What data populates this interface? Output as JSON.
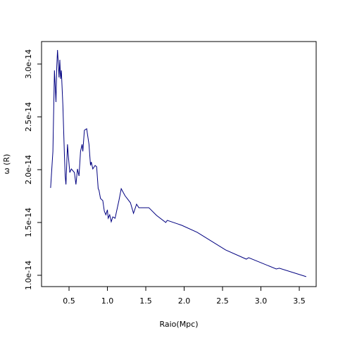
{
  "chart_data": {
    "type": "line",
    "xlabel": "Raio(Mpc)",
    "ylabel": "ω (R)",
    "x": [
      0.26,
      0.29,
      0.31,
      0.33,
      0.34,
      0.35,
      0.36,
      0.37,
      0.38,
      0.39,
      0.4,
      0.42,
      0.44,
      0.45,
      0.46,
      0.48,
      0.49,
      0.51,
      0.53,
      0.57,
      0.59,
      0.61,
      0.63,
      0.65,
      0.67,
      0.68,
      0.7,
      0.73,
      0.76,
      0.78,
      0.79,
      0.81,
      0.84,
      0.86,
      0.88,
      0.89,
      0.91,
      0.94,
      0.96,
      0.98,
      1.0,
      1.01,
      1.03,
      1.05,
      1.07,
      1.1,
      1.12,
      1.15,
      1.18,
      1.23,
      1.3,
      1.34,
      1.38,
      1.41,
      1.54,
      1.64,
      1.76,
      1.78,
      1.97,
      2.17,
      2.54,
      2.81,
      2.84,
      3.2,
      3.24,
      3.59
    ],
    "series": [
      {
        "color": "#000080",
        "values": [
          1.827e-14,
          2.173e-14,
          2.94e-14,
          2.64e-14,
          2.973e-14,
          3.133e-14,
          3.007e-14,
          2.873e-14,
          3.04e-14,
          2.86e-14,
          2.94e-14,
          2.607e-14,
          2.14e-14,
          1.94e-14,
          1.86e-14,
          2.24e-14,
          2.14e-14,
          1.973e-14,
          2.007e-14,
          1.973e-14,
          1.86e-14,
          2.007e-14,
          1.94e-14,
          2.173e-14,
          2.24e-14,
          2.173e-14,
          2.373e-14,
          2.387e-14,
          2.24e-14,
          2.04e-14,
          2.073e-14,
          2.007e-14,
          2.04e-14,
          2.027e-14,
          1.82e-14,
          1.807e-14,
          1.727e-14,
          1.707e-14,
          1.607e-14,
          1.573e-14,
          1.62e-14,
          1.54e-14,
          1.573e-14,
          1.507e-14,
          1.553e-14,
          1.54e-14,
          1.607e-14,
          1.707e-14,
          1.82e-14,
          1.753e-14,
          1.687e-14,
          1.587e-14,
          1.673e-14,
          1.64e-14,
          1.64e-14,
          1.567e-14,
          1.5e-14,
          1.52e-14,
          1.473e-14,
          1.407e-14,
          1.24e-14,
          1.153e-14,
          1.167e-14,
          1.06e-14,
          1.067e-14,
          9.87e-15
        ]
      }
    ],
    "xlim": [
      0.142,
      3.72
    ],
    "xticks": [
      0.5,
      {
        "value": 1.0,
        "label": "1.0"
      },
      1.5,
      {
        "value": 2.0,
        "label": "2.0"
      },
      2.5,
      {
        "value": 3.0,
        "label": "3.0"
      },
      3.5
    ],
    "ylim": [
      8.93e-15,
      3.213e-14
    ],
    "yticks": [
      {
        "value": 1e-14,
        "label": "1.0e-14"
      },
      {
        "value": 1.5e-14,
        "label": "1.5e-14"
      },
      {
        "value": 2e-14,
        "label": "2.0e-14"
      },
      {
        "value": 2.5e-14,
        "label": "2.5e-14"
      },
      {
        "value": 3e-14,
        "label": "3.0e-14"
      }
    ]
  }
}
